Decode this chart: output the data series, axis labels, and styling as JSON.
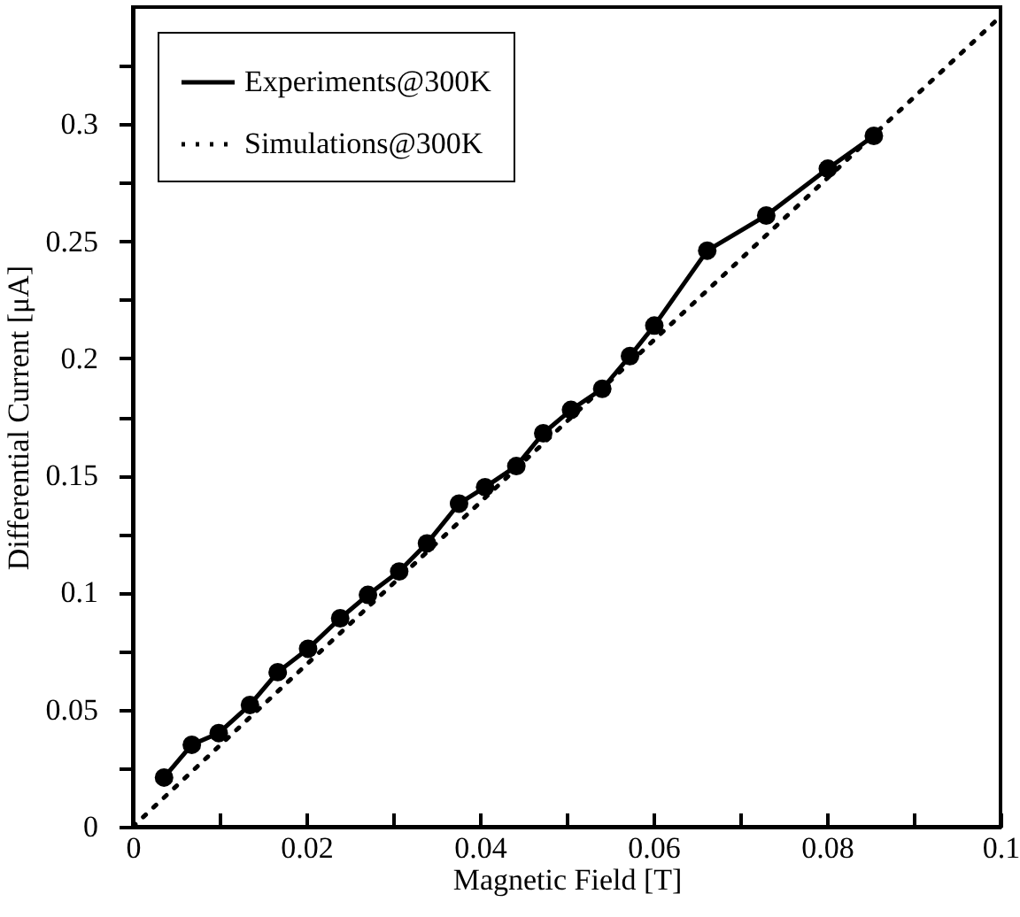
{
  "chart_data": {
    "type": "line",
    "xlabel": "Magnetic Field [T]",
    "ylabel": "Differential Current [μA]",
    "xlim": [
      0,
      0.1
    ],
    "ylim": [
      0,
      0.35
    ],
    "xticks": [
      0,
      {
        "value": 0.01,
        "label": null
      },
      0.02,
      {
        "value": 0.03,
        "label": null
      },
      0.04,
      {
        "value": 0.05,
        "label": null
      },
      0.06,
      {
        "value": 0.07,
        "label": null
      },
      0.08,
      {
        "value": 0.09,
        "label": null
      },
      0.1
    ],
    "yticks": [
      0,
      {
        "value": 0.025,
        "label": null
      },
      0.05,
      {
        "value": 0.075,
        "label": null
      },
      0.1,
      {
        "value": 0.125,
        "label": null
      },
      0.15,
      {
        "value": 0.175,
        "label": null
      },
      0.2,
      {
        "value": 0.225,
        "label": null
      },
      0.25,
      {
        "value": 0.275,
        "label": null
      },
      0.3,
      {
        "value": 0.325,
        "label": null
      }
    ],
    "grid": false,
    "legend": "top left",
    "series": [
      {
        "name": "Experiments@300K",
        "color": "#000000",
        "marker": "circle",
        "line_style": "solid",
        "x": [
          0.0036,
          0.0068,
          0.0099,
          0.0135,
          0.0167,
          0.0202,
          0.0239,
          0.0271,
          0.0307,
          0.0339,
          0.0376,
          0.0406,
          0.0442,
          0.0473,
          0.0505,
          0.0541,
          0.0573,
          0.0601,
          0.0662,
          0.073,
          0.0801,
          0.0854
        ],
        "values": [
          0.021,
          0.035,
          0.04,
          0.052,
          0.066,
          0.076,
          0.089,
          0.099,
          0.109,
          0.121,
          0.138,
          0.145,
          0.154,
          0.168,
          0.178,
          0.187,
          0.201,
          0.214,
          0.246,
          0.261,
          0.281,
          0.295
        ]
      },
      {
        "name": "Simulations@300K",
        "color": "#000000",
        "marker": "none",
        "line_style": "dotted",
        "x": [
          0,
          0.1
        ],
        "values": [
          0,
          0.346
        ]
      }
    ]
  }
}
